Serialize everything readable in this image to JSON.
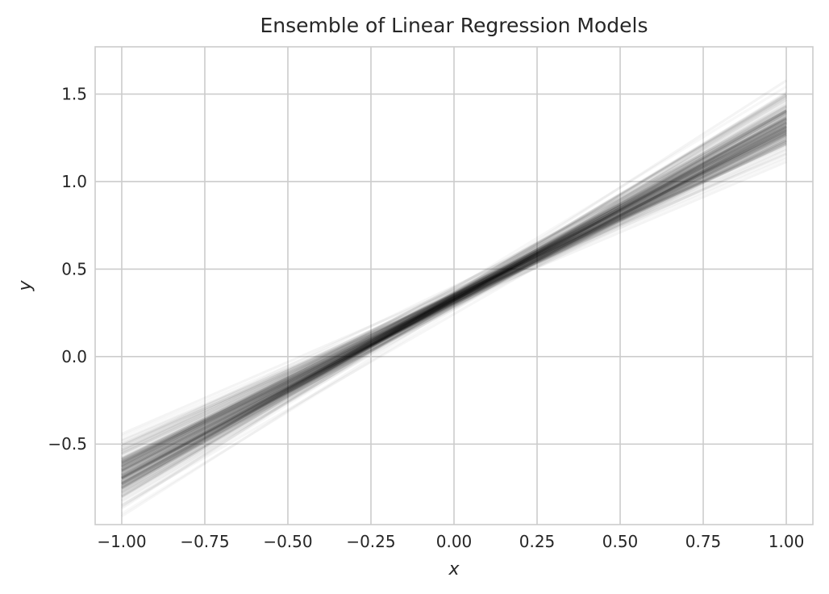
{
  "chart_data": {
    "type": "line",
    "title": "Ensemble of Linear Regression Models",
    "xlabel": "x",
    "ylabel": "y",
    "xlim": [
      -1.08,
      1.08
    ],
    "ylim": [
      -0.96,
      1.77
    ],
    "xticks": [
      -1.0,
      -0.75,
      -0.5,
      -0.25,
      0.0,
      0.25,
      0.5,
      0.75,
      1.0
    ],
    "xtick_labels": [
      "−1.00",
      "−0.75",
      "−0.50",
      "−0.25",
      "0.00",
      "0.25",
      "0.50",
      "0.75",
      "1.00"
    ],
    "yticks": [
      -0.5,
      0.0,
      0.5,
      1.0,
      1.5
    ],
    "ytick_labels": [
      "−0.5",
      "0.0",
      "0.5",
      "1.0",
      "1.5"
    ],
    "grid": true,
    "legend": "none",
    "line_color": "#000000",
    "x_range": [
      -1.0,
      1.0
    ],
    "ensemble_size": 200,
    "intercept_mean": 0.33,
    "intercept_sd": 0.025,
    "slope_mean": 1.0,
    "slope_sd": 0.08
  }
}
